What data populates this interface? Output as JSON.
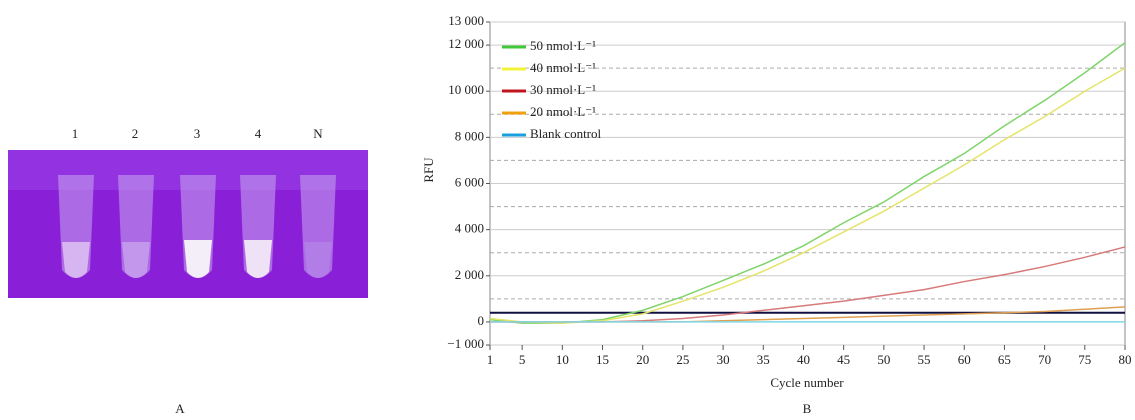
{
  "photo": {
    "tube_labels": [
      "1",
      "2",
      "3",
      "4",
      "N"
    ],
    "panel_label": "A"
  },
  "chart_data": {
    "type": "line",
    "panel_label": "B",
    "xlabel": "Cycle number",
    "ylabel": "RFU",
    "x": [
      1,
      5,
      10,
      15,
      20,
      25,
      30,
      35,
      40,
      45,
      50,
      55,
      60,
      65,
      70,
      75,
      80
    ],
    "series": [
      {
        "name": "50 nmol·L⁻¹",
        "color": "#7fd46a",
        "legend_color": "#3fc83a",
        "values": [
          100,
          -50,
          -50,
          100,
          500,
          1100,
          1800,
          2500,
          3300,
          4300,
          5200,
          6300,
          7300,
          8500,
          9600,
          10800,
          12100
        ]
      },
      {
        "name": "40 nmol·L⁻¹",
        "color": "#e4e46a",
        "legend_color": "#f2f23a",
        "values": [
          150,
          0,
          -50,
          50,
          350,
          900,
          1500,
          2200,
          3000,
          3900,
          4800,
          5800,
          6800,
          7900,
          8900,
          10000,
          11000
        ]
      },
      {
        "name": "30 nmol·L⁻¹",
        "color": "#d77a7a",
        "legend_color": "#c0141e",
        "values": [
          0,
          0,
          0,
          0,
          50,
          150,
          300,
          500,
          700,
          900,
          1150,
          1400,
          1750,
          2050,
          2400,
          2800,
          3250
        ]
      },
      {
        "name": "20 nmol·L⁻¹",
        "color": "#e0a050",
        "legend_color": "#f0a010",
        "values": [
          0,
          0,
          0,
          0,
          0,
          0,
          50,
          100,
          150,
          200,
          250,
          300,
          350,
          400,
          450,
          550,
          650
        ]
      },
      {
        "name": "Blank control",
        "color": "#7fd8e8",
        "legend_color": "#1aa0e0",
        "values": [
          0,
          0,
          0,
          0,
          0,
          0,
          0,
          0,
          0,
          0,
          0,
          0,
          0,
          0,
          0,
          0,
          0
        ]
      }
    ],
    "threshold": 400,
    "threshold_color": "#101040",
    "xlim": [
      1,
      80
    ],
    "xticks": [
      1,
      5,
      10,
      15,
      20,
      25,
      30,
      35,
      40,
      45,
      50,
      55,
      60,
      65,
      70,
      75,
      80
    ],
    "ylim": [
      -1000,
      13000
    ],
    "yticks": [
      {
        "value": -1000,
        "label": "−1 000"
      },
      0,
      {
        "value": 2000,
        "label": "2 000"
      },
      {
        "value": 4000,
        "label": "4 000"
      },
      {
        "value": 6000,
        "label": "6 000"
      },
      {
        "value": 8000,
        "label": "8 000"
      },
      {
        "value": 10000,
        "label": "10 000"
      },
      {
        "value": 12000,
        "label": "12 000"
      },
      {
        "value": 13000,
        "label": "13 000"
      }
    ],
    "dashed_grid": [
      1000,
      3000,
      5000,
      7000,
      9000,
      11000
    ],
    "grid": true,
    "legend": "upper left"
  }
}
